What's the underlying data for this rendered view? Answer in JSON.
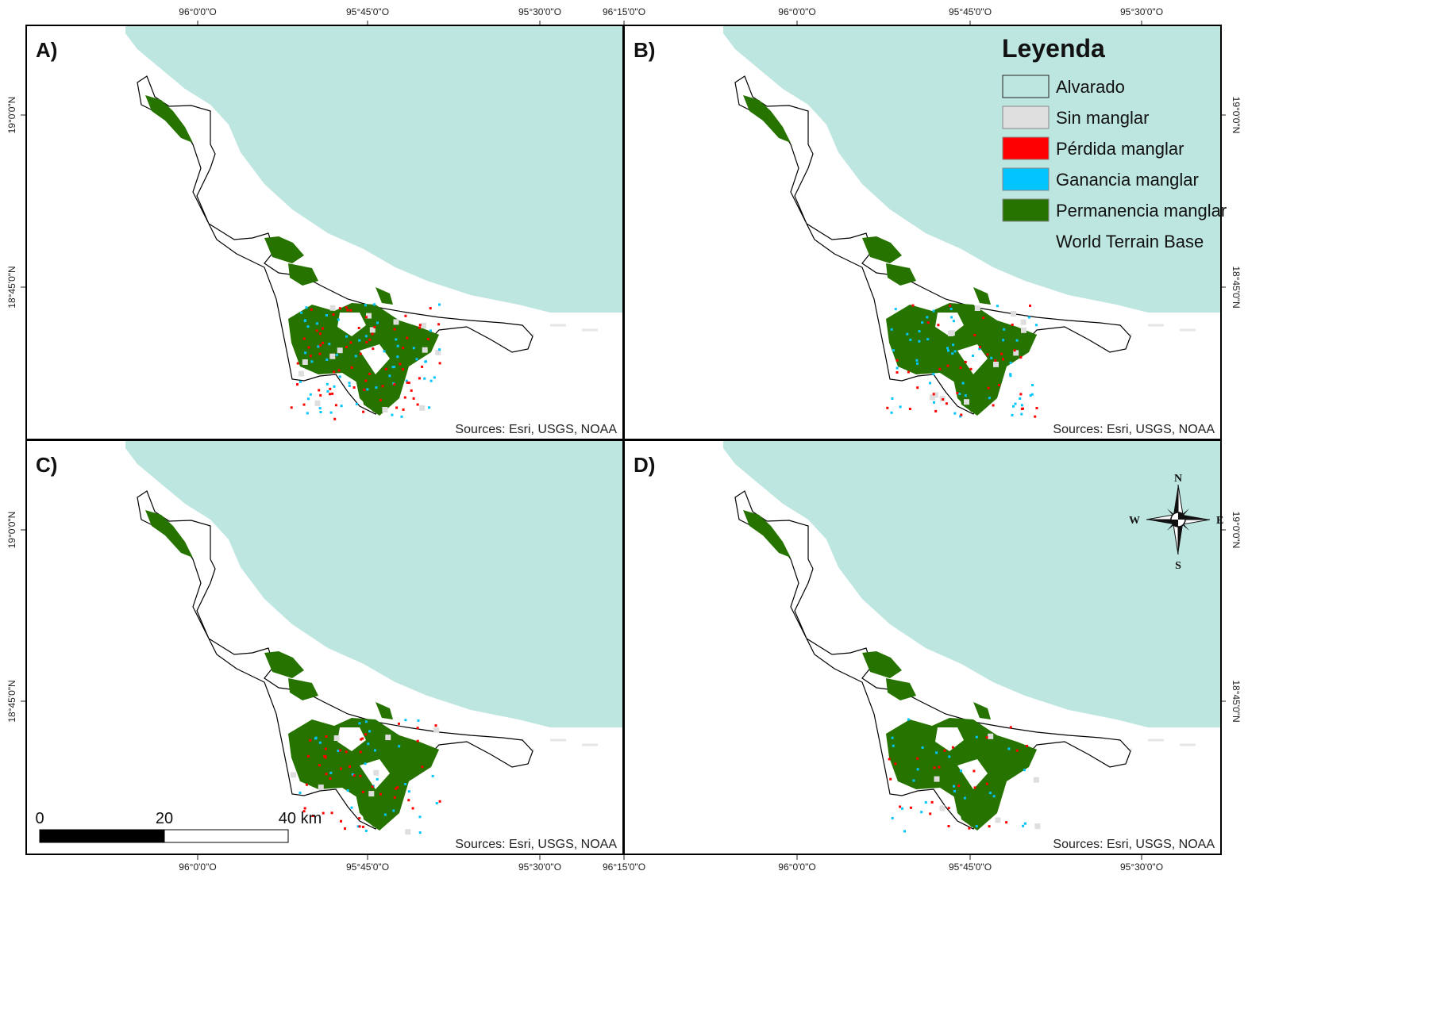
{
  "figure": {
    "top_lon_ticks_left": [
      "96°0'0\"O",
      "95°45'0\"O",
      "95°30'0\"O",
      "96°15'0\"O"
    ],
    "top_lon_ticks_right": [
      "96°0'0\"O",
      "95°45'0\"O",
      "95°30'0\"O"
    ],
    "bottom_lon_ticks_left": [
      "96°0'0\"O",
      "95°45'0\"O",
      "95°30'0\"O",
      "96°15'0\"O"
    ],
    "bottom_lon_ticks_right": [
      "96°0'0\"O",
      "95°45'0\"O",
      "95°30'0\"O"
    ],
    "lat_ticks_top": [
      "19°0'0\"N",
      "18°45'0\"N"
    ],
    "lat_ticks_bottom": [
      "19°0'0\"N",
      "18°45'0\"N"
    ]
  },
  "panels": [
    {
      "id": "A",
      "label": "A)",
      "source": "Sources: Esri, USGS, NOAA"
    },
    {
      "id": "B",
      "label": "B)",
      "source": "Sources: Esri, USGS, NOAA"
    },
    {
      "id": "C",
      "label": "C)",
      "source": "Sources: Esri, USGS, NOAA"
    },
    {
      "id": "D",
      "label": "D)",
      "source": "Sources: Esri, USGS, NOAA"
    }
  ],
  "legend": {
    "title": "Leyenda",
    "items": [
      {
        "label": "Alvarado",
        "color": "#bde6e0"
      },
      {
        "label": "Sin manglar",
        "color": "#dedede"
      },
      {
        "label": "Pérdida manglar",
        "color": "#ff0000"
      },
      {
        "label": "Ganancia manglar",
        "color": "#00c5ff"
      },
      {
        "label": "Permanencia manglar",
        "color": "#267300"
      },
      {
        "label": "World Terrain Base",
        "color": "#ffffff"
      }
    ]
  },
  "scale_bar": {
    "labels": [
      "0",
      "20",
      "40 km"
    ]
  },
  "compass": {
    "n": "N",
    "s": "S",
    "e": "E",
    "w": "W"
  },
  "colors": {
    "sea": "#bde6e0",
    "land": "#ffffff",
    "mangrove": "#267300",
    "loss": "#ff0000",
    "gain": "#00c5ff",
    "no_mangrove": "#dedede"
  }
}
